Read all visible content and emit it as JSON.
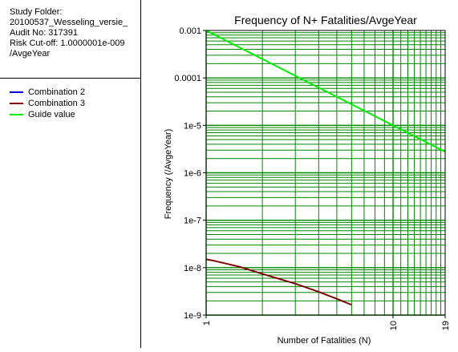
{
  "info": {
    "lines": [
      "Study Folder:",
      "20100537_Wesseling_versie_",
      "Audit No: 317391",
      "Risk Cut-off: 1.0000001e-009",
      "/AvgeYear"
    ]
  },
  "chart_data": {
    "type": "line",
    "title": "Frequency of N+ Fatalities/AvgeYear",
    "xlabel": "Number of Fatalities (N)",
    "ylabel": "Frequency (/AvgeYear)",
    "x_scale": "log",
    "y_scale": "log",
    "xlim": [
      1,
      19
    ],
    "ylim": [
      1e-09,
      0.001
    ],
    "x_ticks": [
      1,
      10,
      19
    ],
    "x_tick_labels": [
      "1",
      "10",
      "19"
    ],
    "y_ticks": [
      0.001,
      0.0001,
      1e-05,
      1e-06,
      1e-07,
      1e-08,
      1e-09
    ],
    "y_tick_labels": [
      "0.001",
      "0.0001",
      "1e-5",
      "1e-6",
      "1e-7",
      "1e-8",
      "1e-9"
    ],
    "grid": true,
    "legend_position": "left-panel",
    "series": [
      {
        "name": "Combination 2",
        "color": "#0000cc",
        "x": [],
        "y": []
      },
      {
        "name": "Combination 3",
        "color": "#800000",
        "x": [
          1,
          1.1,
          1.5,
          2,
          3,
          4,
          5,
          6
        ],
        "y": [
          1.5e-08,
          1.4e-08,
          1.05e-08,
          7.4e-09,
          4.6e-09,
          3.1e-09,
          2.2e-09,
          1.65e-09
        ]
      },
      {
        "name": "Guide value",
        "color": "#00ee00",
        "x": [
          1,
          19
        ],
        "y": [
          0.001,
          2.77e-06
        ]
      }
    ]
  }
}
